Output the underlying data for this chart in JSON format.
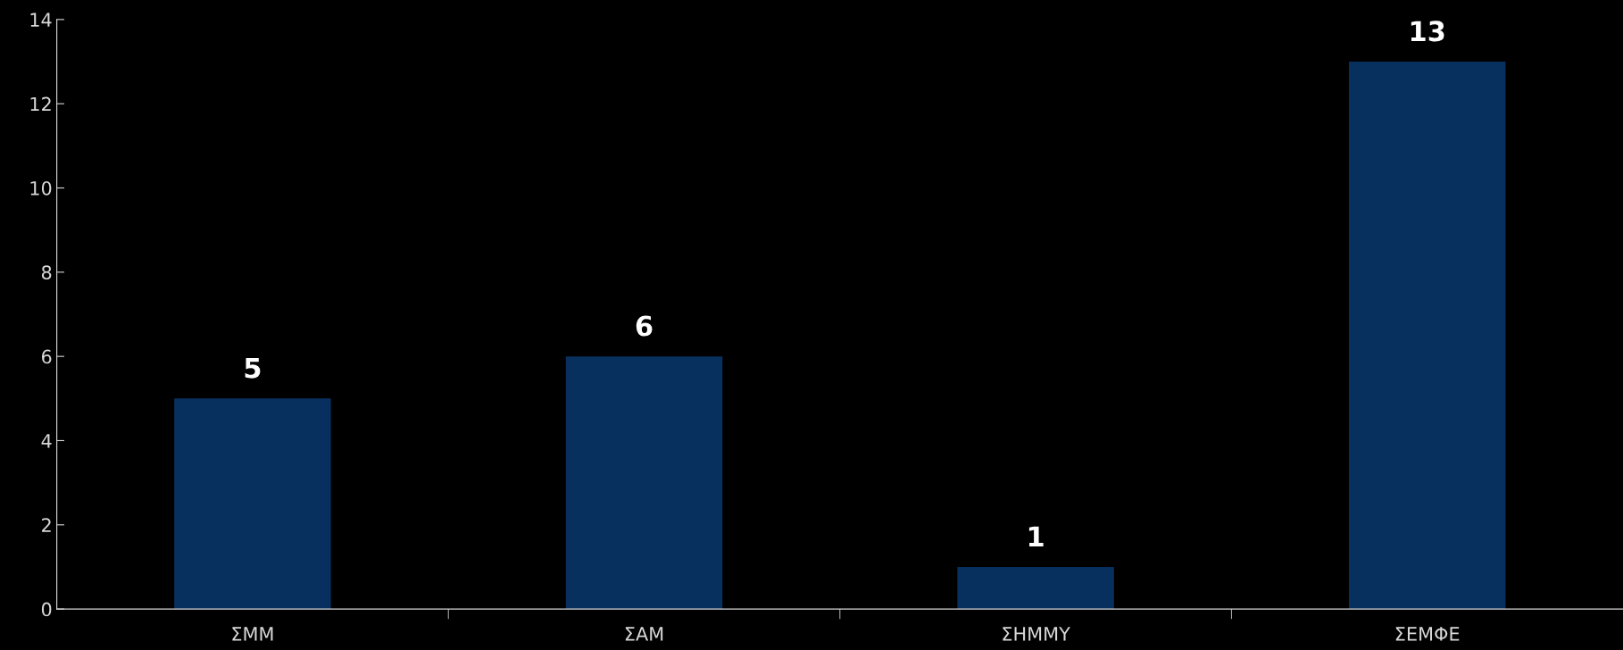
{
  "chart_data": {
    "type": "bar",
    "categories": [
      "ΣΜΜ",
      "ΣΑΜ",
      "ΣΗΜΜΥ",
      "ΣΕΜΦΕ"
    ],
    "values": [
      5,
      6,
      1,
      13
    ],
    "color": "#08305f",
    "ylim": [
      0,
      14
    ],
    "yticks": [
      0,
      2,
      4,
      6,
      8,
      10,
      12,
      14
    ],
    "data_labels": true,
    "grid": false,
    "legend": false
  }
}
